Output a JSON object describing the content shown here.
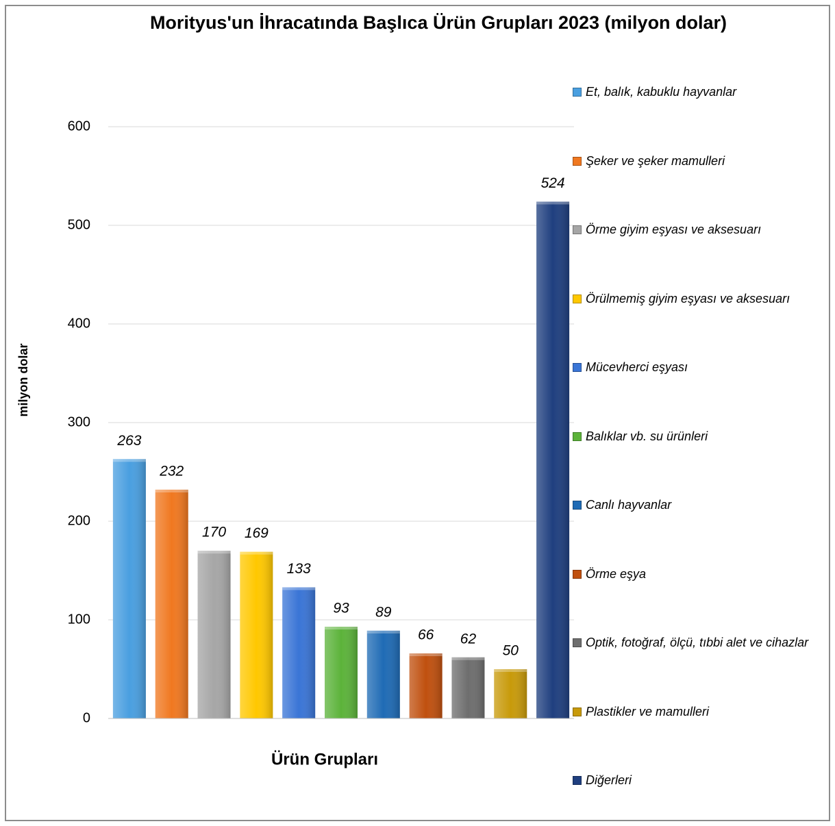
{
  "chart_data": {
    "type": "bar",
    "title": "Morityus'un İhracatında Başlıca Ürün Grupları 2023 (milyon dolar)",
    "x_label": "Ürün Grupları",
    "y_label": "milyon dolar",
    "ylim": [
      0,
      600
    ],
    "yticks": [
      0,
      100,
      200,
      300,
      400,
      500,
      600
    ],
    "grid": true,
    "legend": "right",
    "series": [
      {
        "name": "Et, balık, kabuklu hayvanlar",
        "color": "#4a9fe0",
        "values": [
          263
        ]
      },
      {
        "name": "Şeker ve şeker mamulleri",
        "color": "#f07820",
        "values": [
          232
        ]
      },
      {
        "name": "Örme giyim eşyası ve aksesuarı",
        "color": "#a6a6a6",
        "values": [
          170
        ]
      },
      {
        "name": "Örülmemiş giyim eşyası ve aksesuarı",
        "color": "#ffc800",
        "values": [
          169
        ]
      },
      {
        "name": "Mücevherci eşyası",
        "color": "#3a75d6",
        "values": [
          133
        ]
      },
      {
        "name": "Balıklar vb. su ürünleri",
        "color": "#5cb33a",
        "values": [
          93
        ]
      },
      {
        "name": "Canlı hayvanlar",
        "color": "#1f6bb5",
        "values": [
          89
        ]
      },
      {
        "name": "Örme eşya",
        "color": "#c0500f",
        "values": [
          66
        ]
      },
      {
        "name": "Optik, fotoğraf, ölçü, tıbbi alet ve cihazlar",
        "color": "#6e6e6e",
        "values": [
          62
        ]
      },
      {
        "name": "Plastikler ve mamulleri",
        "color": "#c89a0a",
        "values": [
          50
        ]
      },
      {
        "name": "Diğerleri",
        "color": "#1f3f7f",
        "values": [
          524
        ]
      }
    ]
  }
}
